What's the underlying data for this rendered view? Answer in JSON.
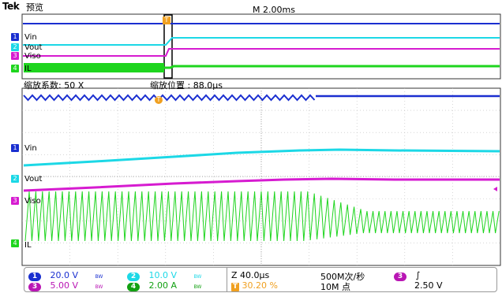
{
  "header": {
    "brand": "Tek",
    "mode": "预览",
    "timebase": "M 2.00ms"
  },
  "overview": {
    "channels": [
      {
        "marker": "1",
        "label": "Vin",
        "color": "#1a2fd0"
      },
      {
        "marker": "2",
        "label": "Vout",
        "color": "#1cd8e6"
      },
      {
        "marker": "3",
        "label": "Viso",
        "color": "#d61bd0"
      },
      {
        "marker": "4",
        "label": "IL",
        "color": "#1ed51e"
      }
    ],
    "trigger_marker": "T"
  },
  "zoom": {
    "factor": "缩放系数: 50 X",
    "position": "缩放位置 : 88.0μs",
    "trigger_marker": "T"
  },
  "main": {
    "channels": [
      {
        "marker": "1",
        "label": "Vin"
      },
      {
        "marker": "2",
        "label": "Vout"
      },
      {
        "marker": "3",
        "label": "Viso"
      },
      {
        "marker": "4",
        "label": "IL"
      }
    ]
  },
  "status": {
    "ch1": {
      "num": "1",
      "scale": "20.0 V",
      "bw": "BW"
    },
    "ch2": {
      "num": "2",
      "scale": "10.0 V",
      "bw": "BW"
    },
    "ch3": {
      "num": "3",
      "scale": "5.00 V",
      "bw": "BW"
    },
    "ch4": {
      "num": "4",
      "scale": "2.00 A",
      "bw": "BW"
    },
    "zoom_scale": "Z 40.0μs",
    "trigger_pos": "30.20 %",
    "sample_rate": "500M次/秒",
    "record_length": "10M 点",
    "trig_source": "3",
    "trig_slope": "∫",
    "trig_level": "2.50 V"
  }
}
